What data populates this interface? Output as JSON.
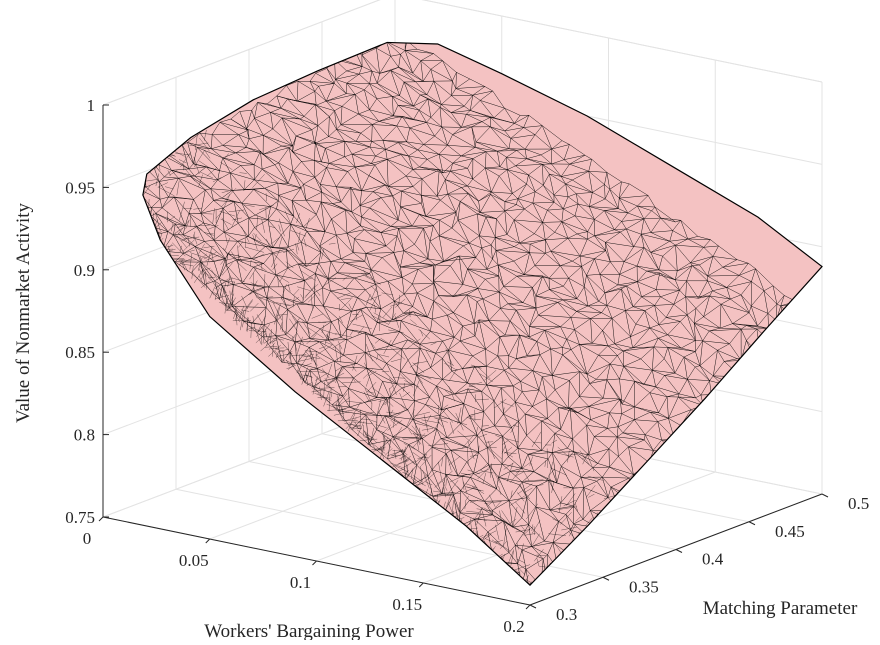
{
  "chart_data": {
    "type": "surface",
    "title": "",
    "xlabel": "Workers' Bargaining Power",
    "ylabel": "Matching Parameter",
    "zlabel": "Value of Nonmarket Activity",
    "xlim": [
      0,
      0.2
    ],
    "ylim": [
      0.3,
      0.5
    ],
    "zlim": [
      0.75,
      1.0
    ],
    "xticks": [
      "0",
      "0.05",
      "0.1",
      "0.15",
      "0.2"
    ],
    "yticks": [
      "0.3",
      "0.35",
      "0.4",
      "0.45",
      "0.5"
    ],
    "zticks": [
      "0.75",
      "0.8",
      "0.85",
      "0.9",
      "0.95",
      "1"
    ],
    "grid": true,
    "surface": {
      "face_color": "#f4c2c2",
      "edge_color": "#000000",
      "boundary": [
        {
          "x": 0.0,
          "y": 0.33,
          "z": 0.948
        },
        {
          "x": 0.0,
          "y": 0.36,
          "z": 0.96
        },
        {
          "x": 0.002,
          "y": 0.4,
          "z": 0.97
        },
        {
          "x": 0.005,
          "y": 0.44,
          "z": 0.975
        },
        {
          "x": 0.01,
          "y": 0.48,
          "z": 0.98
        },
        {
          "x": 0.02,
          "y": 0.5,
          "z": 0.975
        },
        {
          "x": 0.05,
          "y": 0.5,
          "z": 0.965
        },
        {
          "x": 0.09,
          "y": 0.5,
          "z": 0.95
        },
        {
          "x": 0.13,
          "y": 0.5,
          "z": 0.93
        },
        {
          "x": 0.17,
          "y": 0.5,
          "z": 0.91
        },
        {
          "x": 0.2,
          "y": 0.5,
          "z": 0.888
        },
        {
          "x": 0.2,
          "y": 0.46,
          "z": 0.862
        },
        {
          "x": 0.2,
          "y": 0.42,
          "z": 0.835
        },
        {
          "x": 0.2,
          "y": 0.38,
          "z": 0.81
        },
        {
          "x": 0.2,
          "y": 0.34,
          "z": 0.785
        },
        {
          "x": 0.2,
          "y": 0.3,
          "z": 0.762
        },
        {
          "x": 0.17,
          "y": 0.3,
          "z": 0.79
        },
        {
          "x": 0.13,
          "y": 0.3,
          "z": 0.82
        },
        {
          "x": 0.09,
          "y": 0.3,
          "z": 0.85
        },
        {
          "x": 0.05,
          "y": 0.3,
          "z": 0.885
        },
        {
          "x": 0.02,
          "y": 0.31,
          "z": 0.92
        },
        {
          "x": 0.005,
          "y": 0.32,
          "z": 0.94
        }
      ]
    }
  }
}
